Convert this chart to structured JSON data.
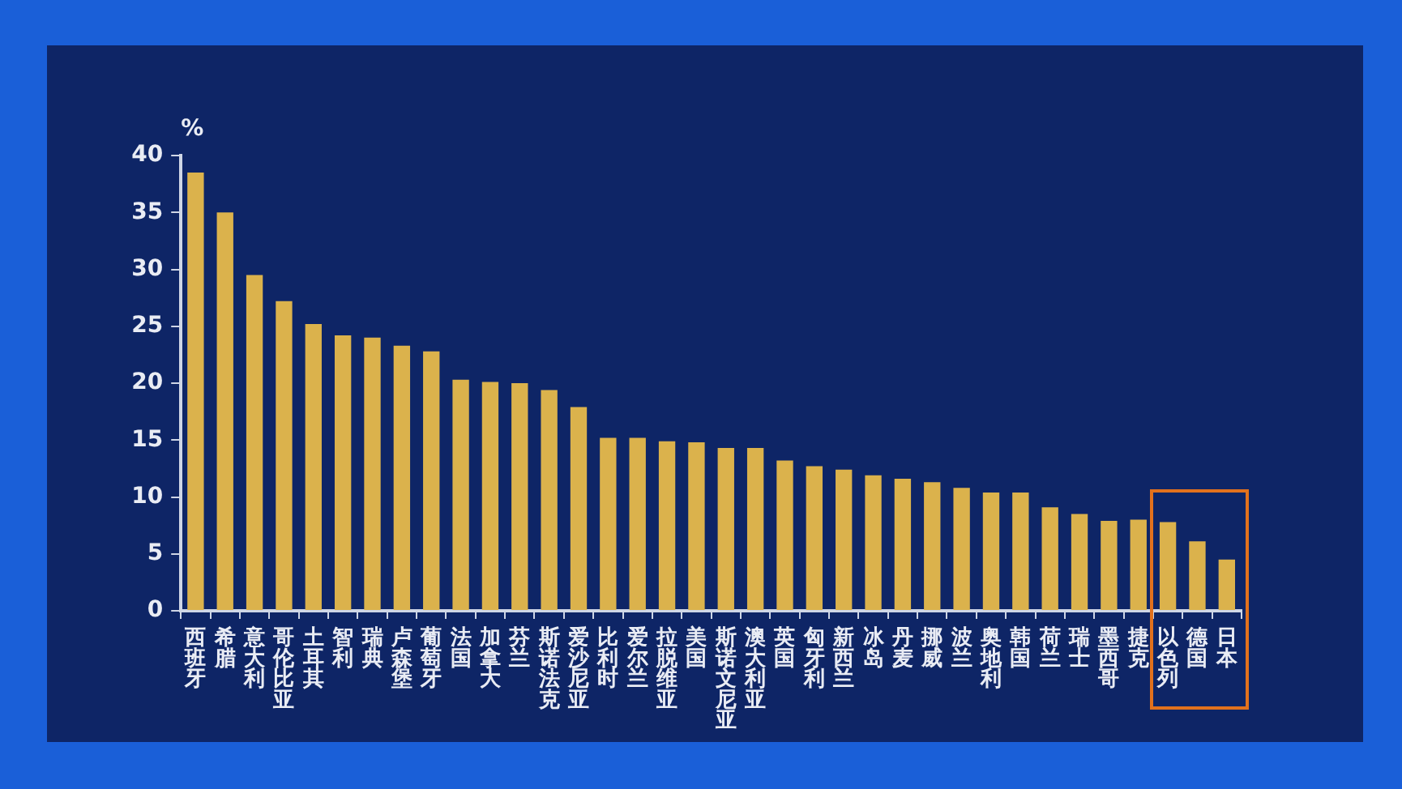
{
  "chart_data": {
    "type": "bar",
    "ylabel": "%",
    "categories": [
      "西班牙",
      "希腊",
      "意大利",
      "哥伦比亚",
      "土耳其",
      "智利",
      "瑞典",
      "卢森堡",
      "葡萄牙",
      "法国",
      "加拿大",
      "芬兰",
      "斯诺法克",
      "爱沙尼亚",
      "比利时",
      "爱尔兰",
      "拉脱维亚",
      "美国",
      "斯诺文尼亚",
      "澳大利亚",
      "英国",
      "匈牙利",
      "新西兰",
      "冰岛",
      "丹麦",
      "挪威",
      "波兰",
      "奥地利",
      "韩国",
      "荷兰",
      "瑞士",
      "墨西哥",
      "捷克",
      "以色列",
      "德国",
      "日本"
    ],
    "values": [
      38.5,
      35.0,
      29.5,
      27.2,
      25.2,
      24.2,
      24.0,
      23.3,
      22.8,
      20.3,
      20.1,
      20.0,
      19.4,
      17.9,
      15.2,
      15.2,
      14.9,
      14.8,
      14.3,
      14.3,
      13.2,
      12.7,
      12.4,
      11.9,
      11.6,
      11.3,
      10.8,
      10.4,
      10.4,
      9.1,
      8.5,
      7.9,
      8.0,
      7.8,
      6.1,
      4.5
    ],
    "color": "#dbb24c",
    "ylim": [
      0,
      40
    ],
    "yticks": [
      0,
      5,
      10,
      15,
      20,
      25,
      30,
      35,
      40
    ],
    "grid": false,
    "legend": false
  }
}
